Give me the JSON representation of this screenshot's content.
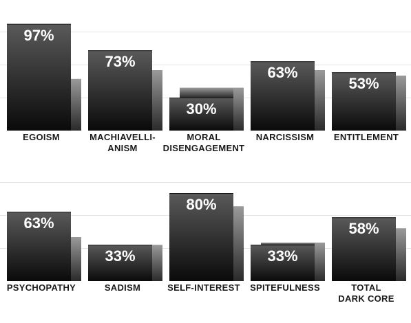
{
  "chart_data": {
    "type": "bar",
    "grid": true,
    "ylim": [
      0,
      100
    ],
    "rows": [
      {
        "categories": [
          [
            "EGOISM"
          ],
          [
            "MACHIAVELLI-",
            "ANISM"
          ],
          [
            "MORAL",
            "DISENGAGEMENT"
          ],
          [
            "NARCISSISM"
          ],
          [
            "ENTITLEMENT"
          ]
        ],
        "series": [
          {
            "values": [
              97,
              73,
              30,
              63,
              53
            ],
            "labels": [
              "97%",
              "73%",
              "30%",
              "63%",
              "53%"
            ]
          },
          {
            "values": [
              47,
              55,
              39,
              55,
              50
            ]
          }
        ]
      },
      {
        "categories": [
          [
            "PSYCHOPATHY"
          ],
          [
            "SADISM"
          ],
          [
            "SELF-INTEREST"
          ],
          [
            "SPITEFULNESS"
          ],
          [
            "TOTAL",
            "DARK CORE"
          ]
        ],
        "series": [
          {
            "values": [
              63,
              33,
              80,
              33,
              58
            ],
            "labels": [
              "63%",
              "33%",
              "80%",
              "33%",
              "58%"
            ]
          },
          {
            "values": [
              40,
              33,
              68,
              35,
              48
            ]
          }
        ]
      }
    ],
    "colors": {
      "primary_top": "#5a5a5a",
      "primary_bottom": "#0a0a0a",
      "secondary_top": "#9a9a9a",
      "secondary_bottom": "#2a2a2a",
      "grid": "#e6e6e6",
      "label": "#ffffff",
      "category": "#1a1a1a"
    }
  }
}
